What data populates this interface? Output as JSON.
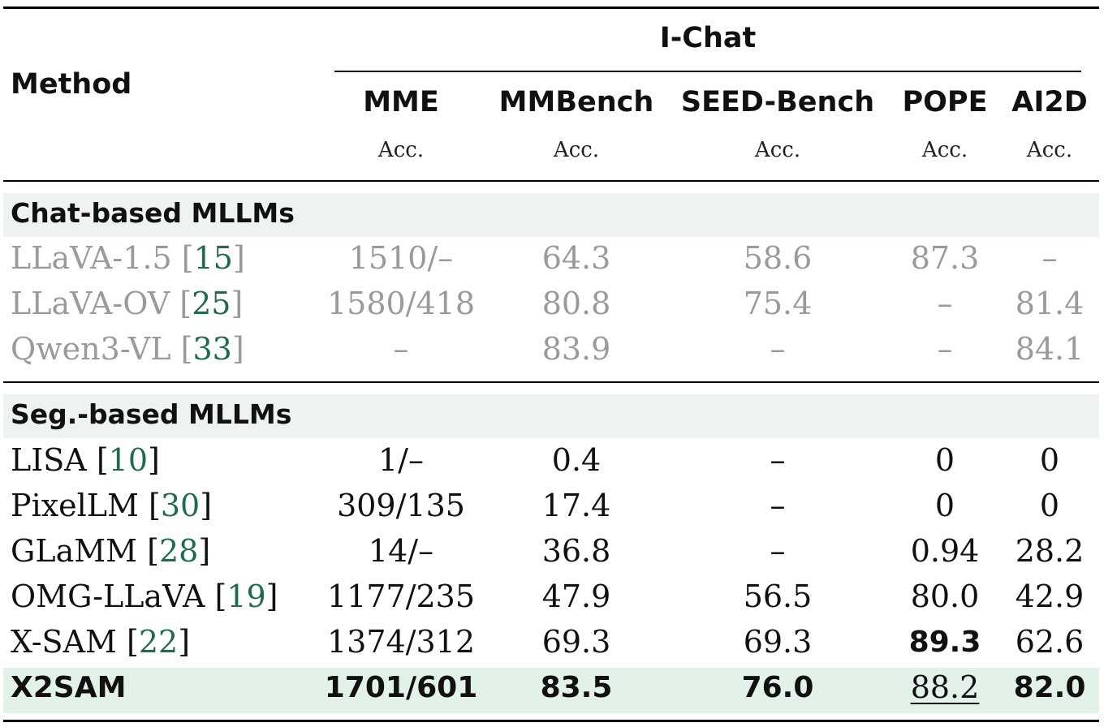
{
  "header": {
    "method": "Method",
    "group": "I-Chat",
    "columns": [
      {
        "name": "MME",
        "metric": "Acc."
      },
      {
        "name": "MMBench",
        "metric": "Acc."
      },
      {
        "name": "SEED-Bench",
        "metric": "Acc."
      },
      {
        "name": "POPE",
        "metric": "Acc."
      },
      {
        "name": "AI2D",
        "metric": "Acc."
      }
    ]
  },
  "sections": [
    {
      "title": "Chat-based MLLMs",
      "rows": [
        {
          "name": "LLaVA-1.5",
          "ref": "15",
          "values": [
            "1510/–",
            "64.3",
            "58.6",
            "87.3",
            "–"
          ]
        },
        {
          "name": "LLaVA-OV",
          "ref": "25",
          "values": [
            "1580/418",
            "80.8",
            "75.4",
            "–",
            "81.4"
          ]
        },
        {
          "name": "Qwen3-VL",
          "ref": "33",
          "values": [
            "–",
            "83.9",
            "–",
            "–",
            "84.1"
          ]
        }
      ]
    },
    {
      "title": "Seg.-based MLLMs",
      "rows": [
        {
          "name": "LISA",
          "ref": "10",
          "values": [
            "1/–",
            "0.4",
            "–",
            "0",
            "0"
          ]
        },
        {
          "name": "PixelLM",
          "ref": "30",
          "values": [
            "309/135",
            "17.4",
            "–",
            "0",
            "0"
          ]
        },
        {
          "name": "GLaMM",
          "ref": "28",
          "values": [
            "14/–",
            "36.8",
            "–",
            "0.94",
            "28.2"
          ]
        },
        {
          "name": "OMG-LLaVA",
          "ref": "19",
          "values": [
            "1177/235",
            "47.9",
            "56.5",
            "80.0",
            "42.9"
          ]
        },
        {
          "name": "X-SAM",
          "ref": "22",
          "values": [
            "1374/312",
            "69.3",
            "69.3",
            "89.3",
            "62.6"
          ]
        }
      ]
    }
  ],
  "ours": {
    "name": "X2SAM",
    "values": [
      "1701/601",
      "83.5",
      "76.0",
      "88.2",
      "82.0"
    ]
  }
}
